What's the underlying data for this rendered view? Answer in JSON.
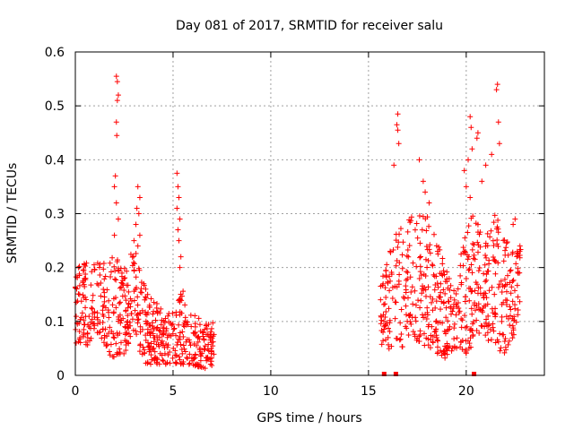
{
  "chart_data": {
    "type": "scatter",
    "title": "Day 081 of 2017, SRMTID for receiver salu",
    "xlabel": "GPS time / hours",
    "ylabel": "SRMTID / TECUs",
    "xlim": [
      0,
      24
    ],
    "ylim": [
      0,
      0.6
    ],
    "xticks": [
      0,
      5,
      10,
      15,
      20
    ],
    "xtick_labels": [
      "0",
      "5",
      "10",
      "15",
      "20"
    ],
    "yticks": [
      0,
      0.1,
      0.2,
      0.3,
      0.4,
      0.5,
      0.6
    ],
    "ytick_labels": [
      "0",
      "0.1",
      "0.2",
      "0.3",
      "0.4",
      "0.5",
      "0.6"
    ],
    "grid": true,
    "marker": "plus",
    "colors": {
      "series": "#ff0000",
      "grid": "#a0a0a0",
      "axis": "#000000"
    },
    "series": [
      {
        "name": "SRMTID",
        "segments": [
          {
            "x_range": [
              0.0,
              7.1
            ],
            "points": [
              [
                2.1,
                0.555
              ],
              [
                2.15,
                0.545
              ],
              [
                2.2,
                0.52
              ],
              [
                2.15,
                0.51
              ],
              [
                2.1,
                0.47
              ],
              [
                2.12,
                0.445
              ],
              [
                2.05,
                0.37
              ],
              [
                2.0,
                0.35
              ],
              [
                2.1,
                0.32
              ],
              [
                2.2,
                0.29
              ],
              [
                2.0,
                0.26
              ],
              [
                3.2,
                0.35
              ],
              [
                3.3,
                0.33
              ],
              [
                3.15,
                0.31
              ],
              [
                3.25,
                0.3
              ],
              [
                3.1,
                0.28
              ],
              [
                3.3,
                0.26
              ],
              [
                3.0,
                0.25
              ],
              [
                3.2,
                0.24
              ],
              [
                5.2,
                0.375
              ],
              [
                5.25,
                0.35
              ],
              [
                5.3,
                0.33
              ],
              [
                5.2,
                0.31
              ],
              [
                5.35,
                0.29
              ],
              [
                5.25,
                0.27
              ],
              [
                5.3,
                0.25
              ],
              [
                5.4,
                0.22
              ],
              [
                5.35,
                0.2
              ],
              [
                3.5,
                0.17
              ],
              [
                3.6,
                0.16
              ],
              [
                3.7,
                0.15
              ],
              [
                3.55,
                0.14
              ],
              [
                3.8,
                0.13
              ]
            ],
            "band": [
              [
                0.0,
                0.06,
                0.2
              ],
              [
                0.5,
                0.05,
                0.21
              ],
              [
                1.0,
                0.07,
                0.22
              ],
              [
                1.5,
                0.06,
                0.21
              ],
              [
                2.0,
                0.02,
                0.23
              ],
              [
                2.5,
                0.04,
                0.2
              ],
              [
                3.0,
                0.08,
                0.25
              ],
              [
                3.5,
                0.02,
                0.17
              ],
              [
                4.0,
                0.02,
                0.14
              ],
              [
                4.5,
                0.02,
                0.12
              ],
              [
                5.0,
                0.02,
                0.12
              ],
              [
                5.5,
                0.02,
                0.16
              ],
              [
                6.0,
                0.02,
                0.12
              ],
              [
                6.5,
                0.01,
                0.1
              ],
              [
                7.1,
                0.02,
                0.1
              ]
            ]
          },
          {
            "x_range": [
              15.6,
              22.8
            ],
            "points": [
              [
                16.5,
                0.485
              ],
              [
                16.45,
                0.465
              ],
              [
                16.5,
                0.455
              ],
              [
                16.55,
                0.43
              ],
              [
                20.2,
                0.48
              ],
              [
                20.25,
                0.46
              ],
              [
                20.6,
                0.45
              ],
              [
                20.55,
                0.44
              ],
              [
                20.3,
                0.42
              ],
              [
                20.1,
                0.4
              ],
              [
                21.6,
                0.54
              ],
              [
                21.55,
                0.53
              ],
              [
                21.65,
                0.47
              ],
              [
                21.7,
                0.43
              ],
              [
                21.3,
                0.41
              ],
              [
                21.0,
                0.39
              ],
              [
                20.8,
                0.36
              ],
              [
                16.3,
                0.39
              ],
              [
                17.6,
                0.4
              ],
              [
                17.8,
                0.36
              ],
              [
                17.9,
                0.34
              ],
              [
                18.1,
                0.32
              ],
              [
                19.9,
                0.38
              ],
              [
                20.0,
                0.35
              ],
              [
                20.2,
                0.33
              ],
              [
                22.5,
                0.29
              ],
              [
                22.4,
                0.28
              ]
            ],
            "band": [
              [
                15.6,
                0.05,
                0.17
              ],
              [
                16.0,
                0.05,
                0.22
              ],
              [
                16.5,
                0.04,
                0.28
              ],
              [
                17.0,
                0.06,
                0.3
              ],
              [
                17.5,
                0.06,
                0.3
              ],
              [
                18.0,
                0.05,
                0.3
              ],
              [
                18.5,
                0.04,
                0.25
              ],
              [
                19.0,
                0.03,
                0.2
              ],
              [
                19.5,
                0.05,
                0.18
              ],
              [
                20.0,
                0.04,
                0.3
              ],
              [
                20.5,
                0.06,
                0.3
              ],
              [
                21.0,
                0.07,
                0.26
              ],
              [
                21.5,
                0.05,
                0.3
              ],
              [
                22.0,
                0.04,
                0.25
              ],
              [
                22.5,
                0.08,
                0.25
              ],
              [
                22.8,
                0.15,
                0.24
              ]
            ]
          }
        ],
        "zero_points": [
          15.8,
          16.4,
          20.4
        ]
      }
    ]
  }
}
